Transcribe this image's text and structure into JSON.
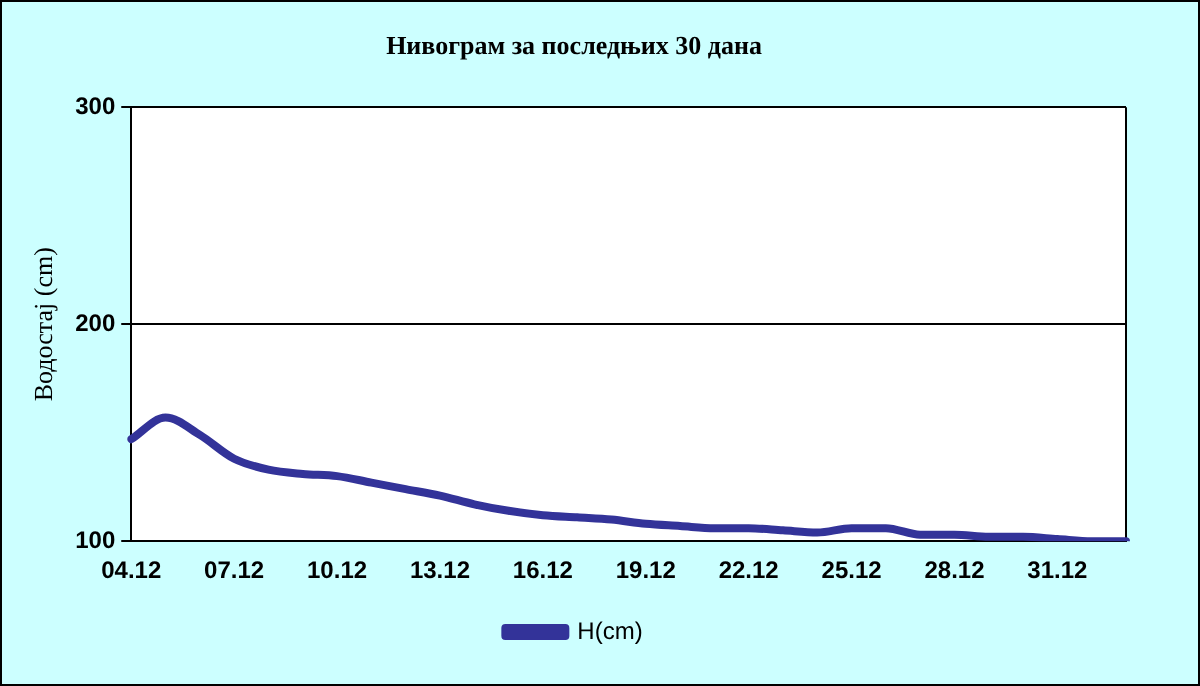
{
  "chart_data": {
    "type": "line",
    "title": "Нивограм за последњих 30 дана",
    "ylabel": "Водостај (cm)",
    "categories": [
      "04.12",
      null,
      null,
      "07.12",
      null,
      null,
      "10.12",
      null,
      null,
      "13.12",
      null,
      null,
      "16.12",
      null,
      null,
      "19.12",
      null,
      null,
      "22.12",
      null,
      null,
      "25.12",
      null,
      null,
      "28.12",
      null,
      null,
      "31.12",
      null,
      null
    ],
    "series": [
      {
        "name": "H(cm)",
        "color": "#333399",
        "values": [
          147,
          157,
          149,
          138,
          133,
          131,
          130,
          127,
          124,
          121,
          117,
          114,
          112,
          111,
          110,
          108,
          107,
          106,
          106,
          105,
          104,
          106,
          106,
          103,
          103,
          102,
          102,
          101,
          100,
          100
        ]
      }
    ],
    "ylim": [
      100,
      300
    ],
    "yticks": [
      100,
      200,
      300
    ],
    "grid": "y",
    "legend": "bottom",
    "marker": "none",
    "line_style": "solid"
  }
}
